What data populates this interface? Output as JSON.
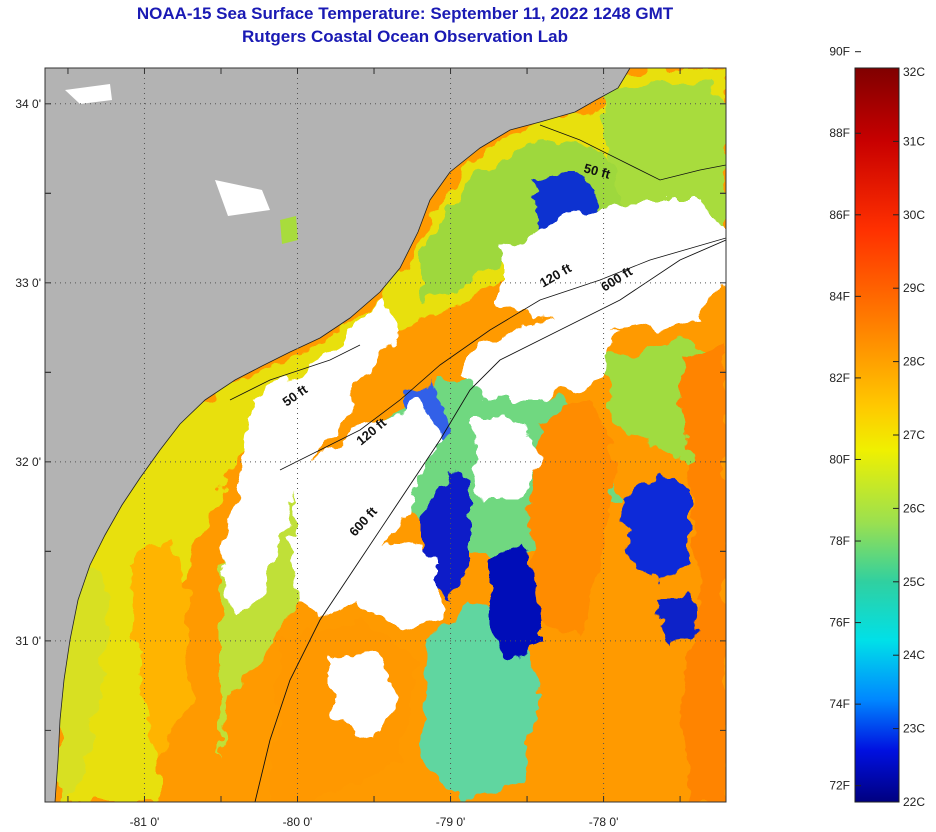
{
  "header": {
    "title": "NOAA-15 Sea Surface Temperature:  September 11, 2022 1248 GMT",
    "subtitle": "Rutgers Coastal Ocean Observation Lab"
  },
  "map": {
    "lon_range": [
      -81.65,
      -77.2
    ],
    "lat_range": [
      30.1,
      34.2
    ],
    "lon_ticks": [
      {
        "value": -81,
        "label": "-81 0'"
      },
      {
        "value": -80,
        "label": "-80 0'"
      },
      {
        "value": -79,
        "label": "-79 0'"
      },
      {
        "value": -78,
        "label": "-78 0'"
      }
    ],
    "lat_ticks": [
      {
        "value": 34,
        "label": "34 0'"
      },
      {
        "value": 33,
        "label": "33 0'"
      },
      {
        "value": 32,
        "label": "32 0'"
      },
      {
        "value": 31,
        "label": "31 0'"
      }
    ],
    "contour_labels": [
      {
        "text": "50 ft",
        "lon": -78.05,
        "lat": 33.6,
        "angle": 15
      },
      {
        "text": "120 ft",
        "lon": -78.3,
        "lat": 33.02,
        "angle": -30
      },
      {
        "text": "600 ft",
        "lon": -77.9,
        "lat": 33.0,
        "angle": -32
      },
      {
        "text": "50 ft",
        "lon": -80.0,
        "lat": 32.35,
        "angle": -35
      },
      {
        "text": "120 ft",
        "lon": -79.5,
        "lat": 32.15,
        "angle": -40
      },
      {
        "text": "600 ft",
        "lon": -79.55,
        "lat": 31.65,
        "angle": -48
      }
    ],
    "colors": {
      "land": "#b3b3b3",
      "cloud": "#ffffff",
      "grid": "#555555"
    }
  },
  "colorbar": {
    "f_labels": [
      "90F",
      "88F",
      "86F",
      "84F",
      "82F",
      "80F",
      "78F",
      "76F",
      "74F",
      "72F"
    ],
    "c_labels": [
      "32C",
      "31C",
      "30C",
      "29C",
      "28C",
      "27C",
      "26C",
      "25C",
      "24C",
      "23C",
      "22C"
    ],
    "range_c": [
      22,
      32
    ]
  }
}
